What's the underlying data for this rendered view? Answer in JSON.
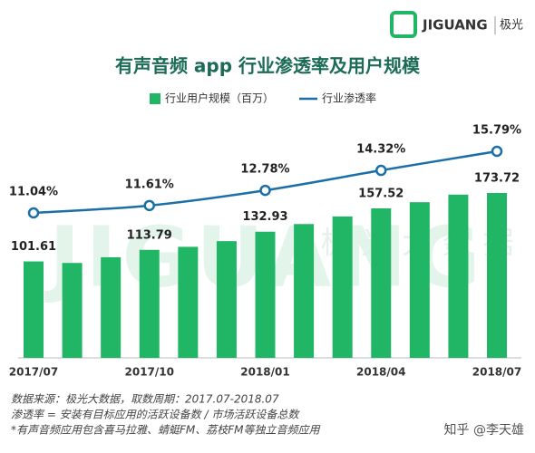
{
  "chart_data": {
    "type": "bar",
    "title": "有声音频 app 行业渗透率及用户规模",
    "brand": "JIGUANG",
    "brand_cn": "极光",
    "watermark": "JIGUANG",
    "watermark_cn": "极 光 大 数 据",
    "categories": [
      "2017/07",
      null,
      null,
      "2017/10",
      null,
      null,
      "2018/01",
      null,
      null,
      "2018/04",
      null,
      null,
      "2018/07"
    ],
    "series": [
      {
        "name": "行业用户规模（百万）",
        "type": "bar",
        "color": "#21b566",
        "values": [
          101.61,
          100,
          106,
          113.79,
          117,
          123,
          132.93,
          141,
          149,
          157.52,
          164,
          172,
          173.72
        ]
      },
      {
        "name": "行业渗透率",
        "type": "line",
        "color": "#1a6fa8",
        "x": [
          "2017/07",
          "2017/10",
          "2018/01",
          "2018/04",
          "2018/07"
        ],
        "values": [
          11.04,
          11.61,
          12.78,
          14.32,
          15.79
        ],
        "value_labels": [
          "11.04%",
          "11.61%",
          "12.78%",
          "14.32%",
          "15.79%"
        ]
      }
    ],
    "notes": [
      "数据来源：极光大数据，取数周期：2017.07-2018.07",
      "渗透率 = 安装有目标应用的活跃设备数 / 市场活跃设备总数",
      "*有声音频应用包含喜马拉雅、蜻蜓FM、荔枝FM等独立音频应用"
    ],
    "credit": "知乎 @李天雄"
  }
}
